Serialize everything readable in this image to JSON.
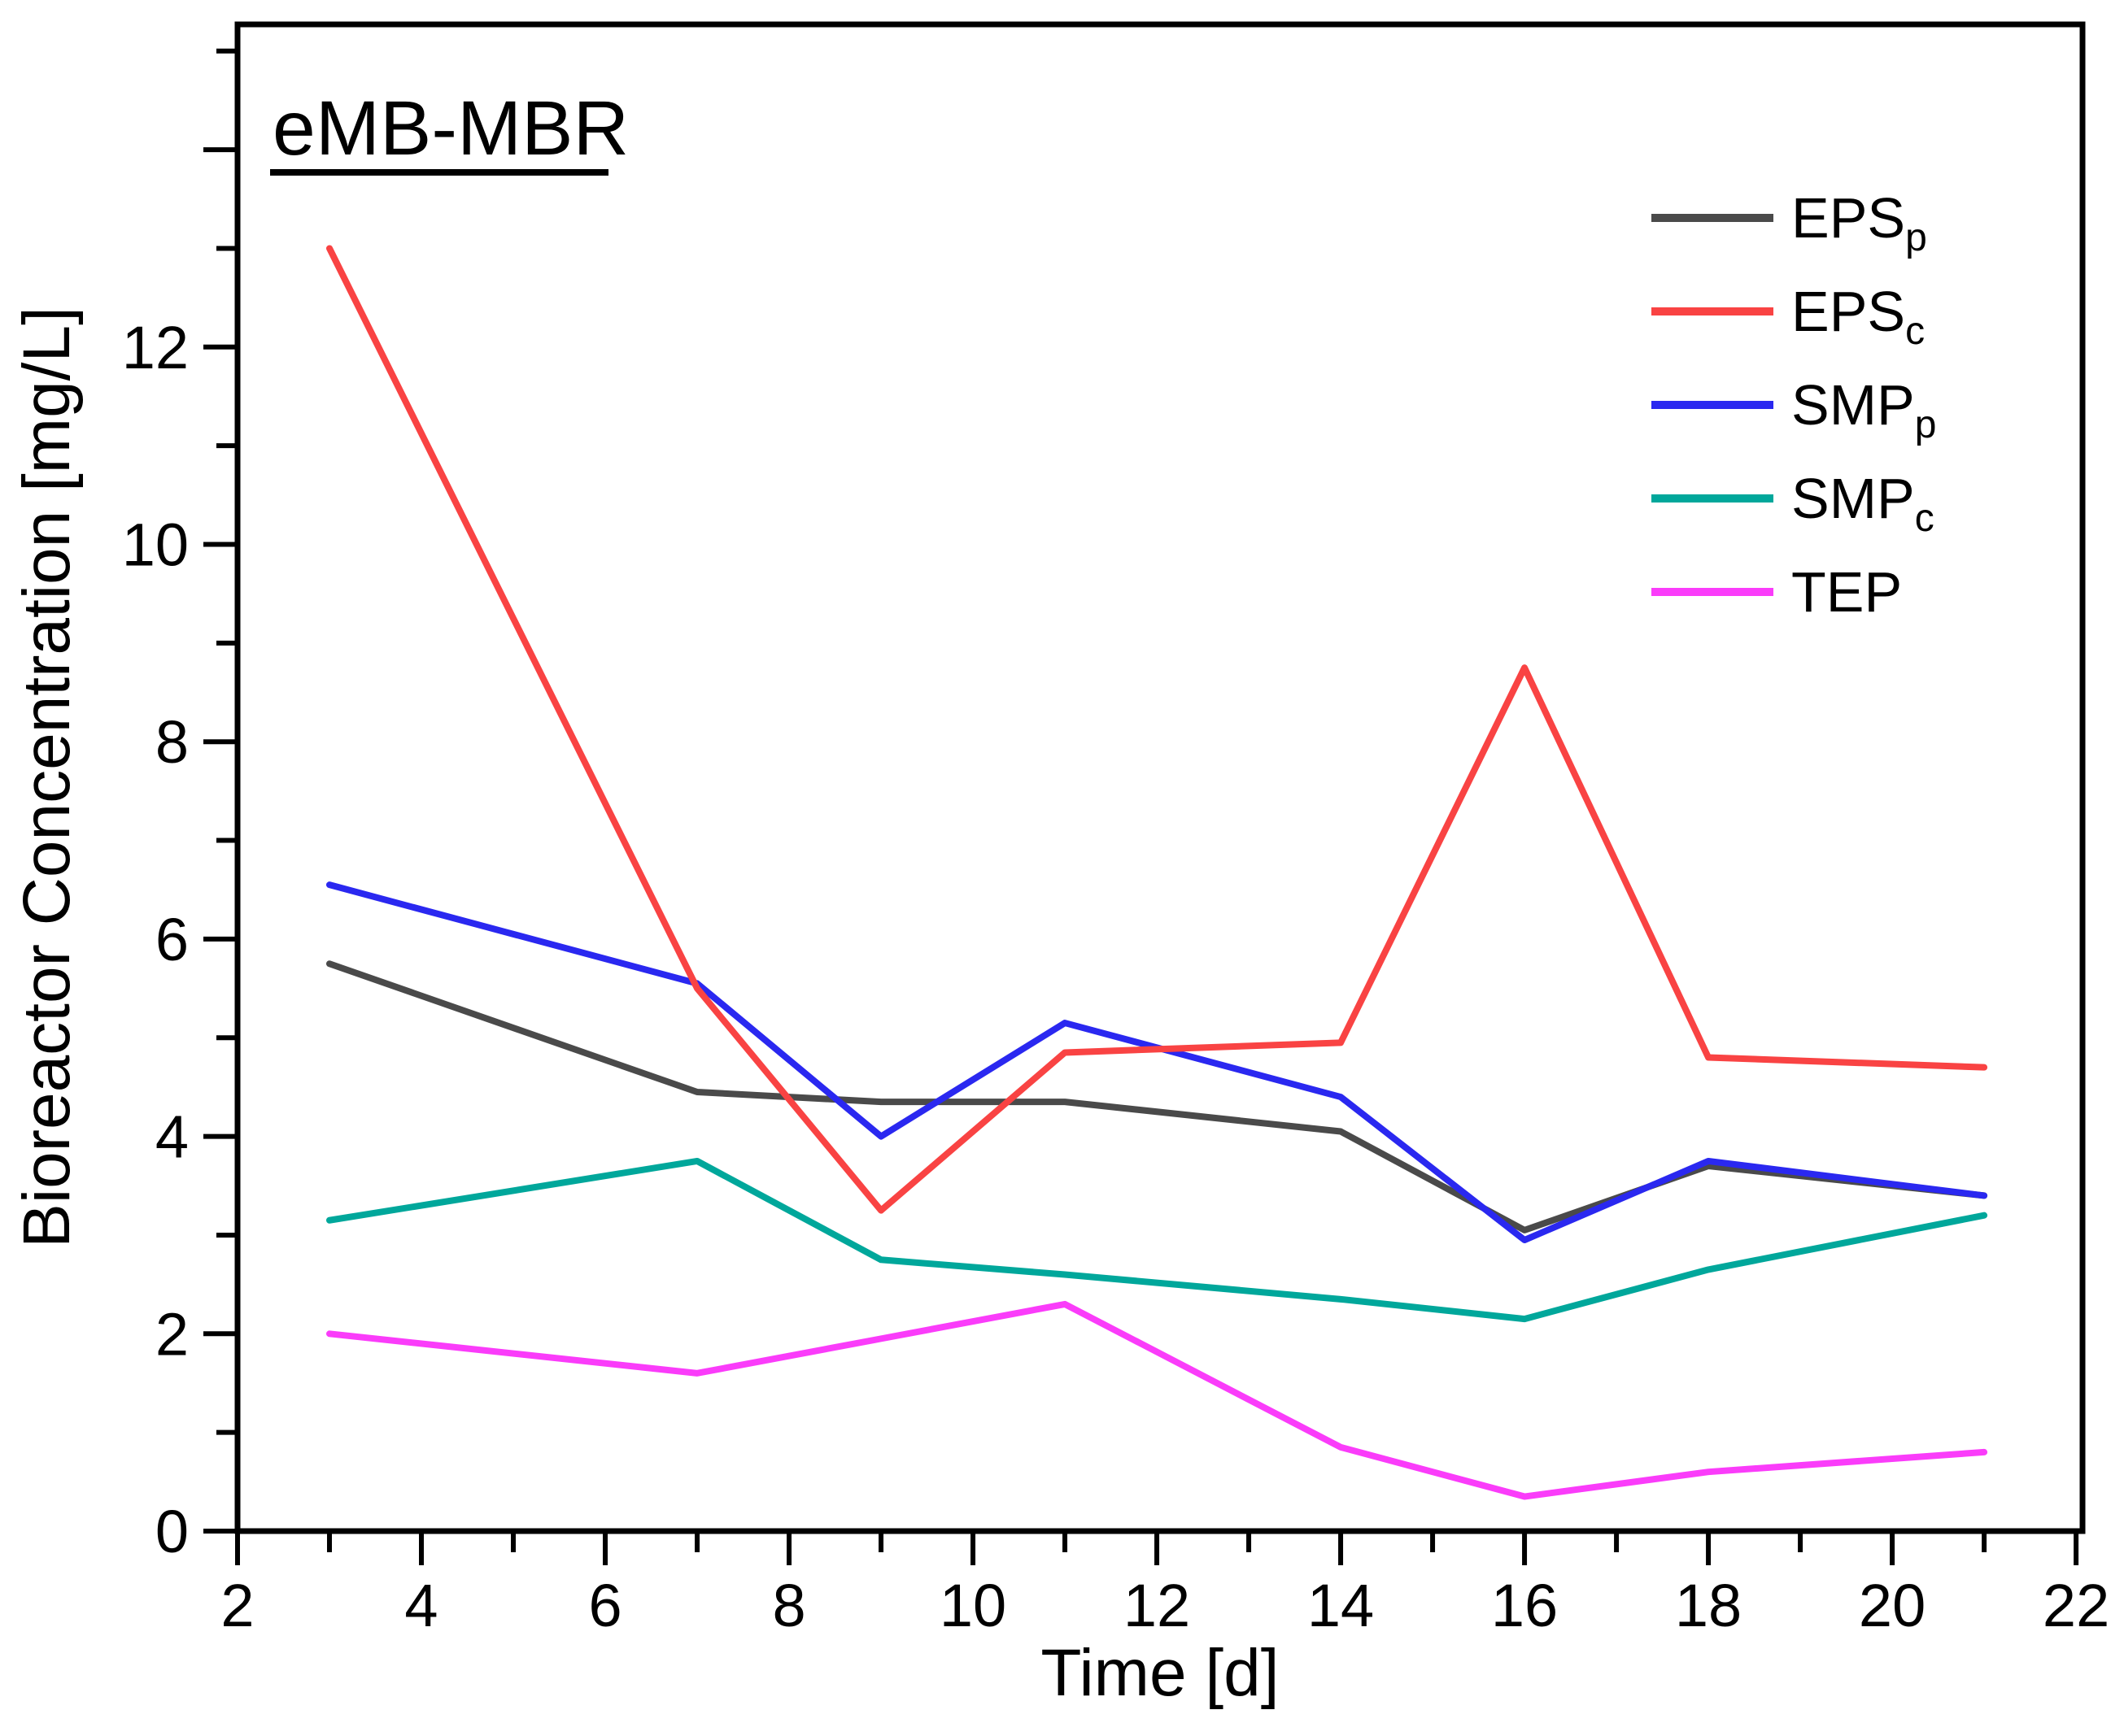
{
  "chart_data": {
    "type": "line",
    "title": "eMB-MBR",
    "xlabel": "Time [d]",
    "ylabel": "Bioreactor Concentration [mg/L]",
    "xlim": [
      2,
      22.07
    ],
    "ylim": [
      0,
      15.27
    ],
    "x_major_ticks": [
      2,
      4,
      6,
      8,
      10,
      12,
      14,
      16,
      18,
      20,
      22
    ],
    "x_minor_ticks": [
      3,
      5,
      7,
      9,
      11,
      13,
      15,
      17,
      19,
      21
    ],
    "y_major_ticks": [
      0,
      2,
      4,
      6,
      8,
      10,
      12,
      14
    ],
    "y_labeled_ticks": [
      0,
      2,
      4,
      6,
      8,
      10,
      12
    ],
    "y_minor_ticks": [
      1,
      3,
      5,
      7,
      9,
      11,
      13,
      15
    ],
    "grid": "off",
    "legend_position": "upper right",
    "x": [
      3,
      7,
      9,
      11,
      14,
      16,
      18,
      21
    ],
    "series": [
      {
        "name": "EPS_p",
        "label_main": "EPS",
        "label_sub": "p",
        "color": "#4a4a4a",
        "values": [
          5.75,
          4.45,
          4.35,
          4.35,
          4.05,
          3.05,
          3.7,
          3.4
        ]
      },
      {
        "name": "SMP_c",
        "label_main": "SMP",
        "label_sub": "c",
        "color": "#00a79b",
        "values": [
          3.15,
          3.75,
          2.75,
          2.6,
          2.35,
          2.15,
          2.65,
          3.2
        ]
      },
      {
        "name": "TEP",
        "label_main": "TEP",
        "label_sub": "",
        "color": "#fa3cfa",
        "values": [
          2.0,
          1.6,
          1.95,
          2.3,
          0.85,
          0.35,
          0.6,
          0.8
        ]
      },
      {
        "name": "SMP_p",
        "label_main": "SMP",
        "label_sub": "p",
        "color": "#2a28f0",
        "values": [
          6.55,
          5.55,
          4.0,
          5.15,
          4.4,
          2.95,
          3.75,
          3.4
        ]
      },
      {
        "name": "EPS_c",
        "label_main": "EPS",
        "label_sub": "c",
        "color": "#f94343",
        "values": [
          13.0,
          5.5,
          3.25,
          4.85,
          4.95,
          8.75,
          4.8,
          4.7
        ]
      }
    ],
    "legend_order": [
      "EPS_p",
      "EPS_c",
      "SMP_p",
      "SMP_c",
      "TEP"
    ]
  }
}
